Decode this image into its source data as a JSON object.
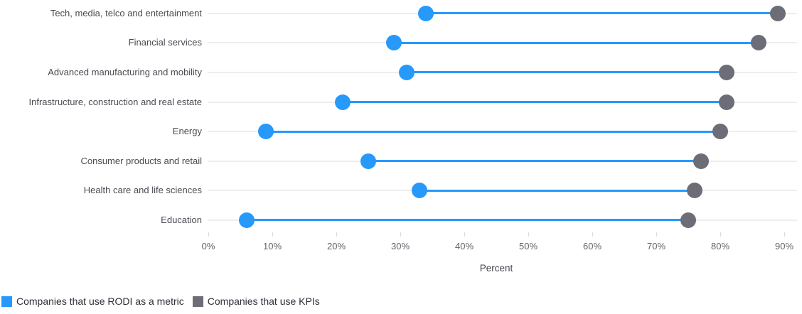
{
  "chart_data": {
    "type": "dumbbell",
    "categories": [
      "Tech, media, telco and entertainment",
      "Financial services",
      "Advanced manufacturing and mobility",
      "Infrastructure, construction and real estate",
      "Energy",
      "Consumer products and retail",
      "Health care and life sciences",
      "Education"
    ],
    "series": [
      {
        "name": "Companies that use RODI as a metric",
        "color": "#2699fb",
        "values": [
          34,
          29,
          31,
          21,
          9,
          25,
          33,
          6
        ]
      },
      {
        "name": "Companies that use KPIs",
        "color": "#6d6d77",
        "values": [
          89,
          86,
          81,
          81,
          80,
          77,
          76,
          75
        ]
      }
    ],
    "xlabel": "Percent",
    "x_ticks": [
      "0%",
      "10%",
      "20%",
      "30%",
      "40%",
      "50%",
      "60%",
      "70%",
      "80%",
      "90%"
    ],
    "xlim": [
      0,
      90
    ],
    "grid": "light horizontal line per category row",
    "legend_position": "bottom-left",
    "connector_color": "#2699fb"
  }
}
